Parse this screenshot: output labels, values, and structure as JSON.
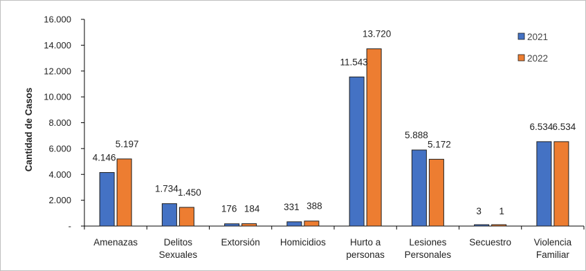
{
  "chart_data": {
    "type": "bar",
    "title": "",
    "xlabel": "",
    "ylabel": "Cantidad de Casos",
    "ylim": [
      0,
      16000
    ],
    "yticks": [
      "-",
      "2.000",
      "4.000",
      "6.000",
      "8.000",
      "10.000",
      "12.000",
      "14.000",
      "16.000"
    ],
    "grid": false,
    "legend_position": "top-right",
    "categories": [
      [
        "Amenazas"
      ],
      [
        "Delitos",
        "Sexuales"
      ],
      [
        "Extorsión"
      ],
      [
        "Homicidios"
      ],
      [
        "Hurto a",
        "personas"
      ],
      [
        "Lesiones",
        "Personales"
      ],
      [
        "Secuestro"
      ],
      [
        "Violencia",
        "Familiar"
      ]
    ],
    "series": [
      {
        "name": "2021",
        "color": "#4472C4",
        "values": [
          4146,
          1734,
          176,
          331,
          11543,
          5888,
          3,
          6534
        ],
        "labels": [
          "4.146",
          "1.734",
          "176",
          "331",
          "11.543",
          "5.888",
          "3",
          "6.534"
        ]
      },
      {
        "name": "2022",
        "color": "#ED7D31",
        "values": [
          5197,
          1450,
          184,
          388,
          13720,
          5172,
          1,
          6534
        ],
        "labels": [
          "5.197",
          "1.450",
          "184",
          "388",
          "13.720",
          "5.172",
          "1",
          "6.534"
        ]
      }
    ]
  }
}
